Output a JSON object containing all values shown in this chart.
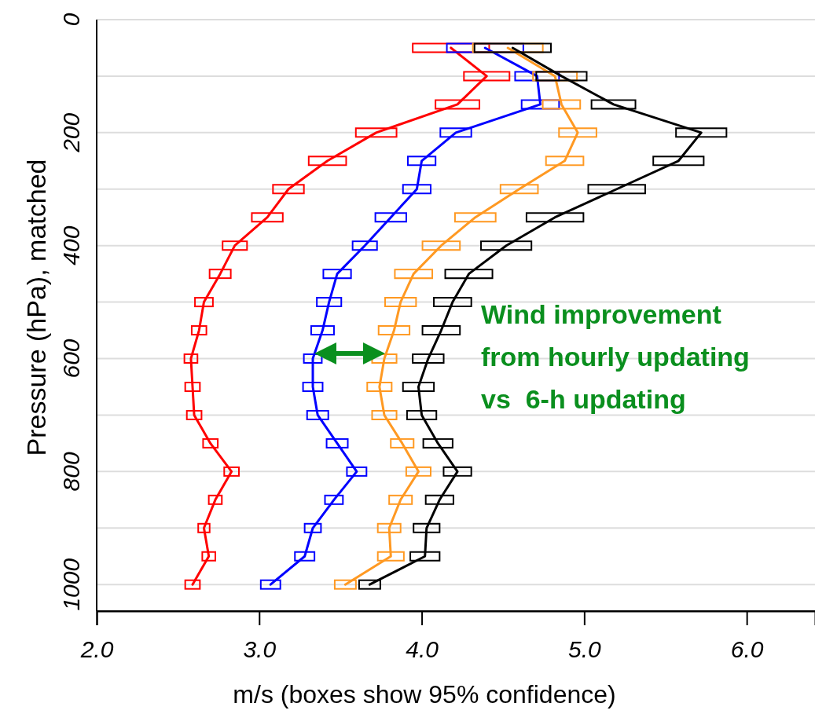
{
  "chart_data": {
    "type": "line",
    "xlabel": "m/s (boxes show 95% confidence)",
    "ylabel": "Pressure (hPa), matched",
    "xlim": [
      2.0,
      6.42
    ],
    "ylim": [
      1047,
      0
    ],
    "xticks": [
      {
        "value": 2,
        "label": "2.0"
      },
      {
        "value": 3,
        "label": "3.0"
      },
      {
        "value": 4,
        "label": "4.0"
      },
      {
        "value": 5,
        "label": "5.0"
      },
      {
        "value": 6,
        "label": "6.0"
      }
    ],
    "yticks": [
      0,
      {
        "value": 100,
        "label": null
      },
      200,
      {
        "value": 300,
        "label": null
      },
      400,
      {
        "value": 500,
        "label": null
      },
      600,
      {
        "value": 700,
        "label": null
      },
      800,
      {
        "value": 900,
        "label": null
      },
      1000
    ],
    "grid": "y",
    "line_style": "solid",
    "annotations": [
      "Wind improvement\nfrom hourly updating\nvs  6-h updating"
    ],
    "series": [
      {
        "color": "#ff0000",
        "x": [
          4.18,
          4.4,
          4.22,
          3.72,
          3.42,
          3.18,
          3.05,
          2.85,
          2.76,
          2.66,
          2.63,
          2.58,
          2.59,
          2.6,
          2.7,
          2.83,
          2.73,
          2.66,
          2.69,
          2.59
        ],
        "values": [
          50,
          100,
          150,
          200,
          250,
          300,
          350,
          400,
          450,
          500,
          550,
          600,
          650,
          700,
          750,
          800,
          850,
          900,
          950,
          1000
        ],
        "xerrors": [
          0.24,
          0.145,
          0.14,
          0.13,
          0.12,
          0.1,
          0.1,
          0.08,
          0.07,
          0.06,
          0.05,
          0.045,
          0.05,
          0.05,
          0.05,
          0.05,
          0.045,
          0.04,
          0.045,
          0.05
        ]
      },
      {
        "color": "#0000ff",
        "x": [
          4.39,
          4.71,
          4.73,
          4.21,
          4.0,
          3.97,
          3.81,
          3.65,
          3.48,
          3.43,
          3.39,
          3.33,
          3.33,
          3.36,
          3.48,
          3.6,
          3.46,
          3.33,
          3.28,
          3.07
        ],
        "values": [
          50,
          100,
          150,
          200,
          250,
          300,
          350,
          400,
          450,
          500,
          550,
          600,
          650,
          700,
          750,
          800,
          850,
          900,
          950,
          1000
        ],
        "xerrors": [
          0.24,
          0.14,
          0.12,
          0.1,
          0.09,
          0.09,
          0.1,
          0.08,
          0.09,
          0.08,
          0.075,
          0.06,
          0.065,
          0.07,
          0.07,
          0.065,
          0.06,
          0.055,
          0.065,
          0.065
        ]
      },
      {
        "color": "#ff9922",
        "x": [
          4.53,
          4.82,
          4.86,
          4.96,
          4.88,
          4.6,
          4.33,
          4.12,
          3.95,
          3.87,
          3.83,
          3.77,
          3.74,
          3.77,
          3.88,
          3.98,
          3.87,
          3.8,
          3.81,
          3.53
        ],
        "values": [
          50,
          100,
          150,
          200,
          250,
          300,
          350,
          400,
          450,
          500,
          550,
          600,
          650,
          700,
          750,
          800,
          850,
          900,
          950,
          1000
        ],
        "xerrors": [
          0.22,
          0.14,
          0.12,
          0.12,
          0.12,
          0.12,
          0.13,
          0.12,
          0.12,
          0.1,
          0.1,
          0.08,
          0.08,
          0.08,
          0.075,
          0.08,
          0.075,
          0.075,
          0.085,
          0.07
        ]
      },
      {
        "color": "#000000",
        "x": [
          4.56,
          4.86,
          5.18,
          5.72,
          5.58,
          5.2,
          4.82,
          4.52,
          4.29,
          4.19,
          4.12,
          4.04,
          3.98,
          4.0,
          4.1,
          4.22,
          4.11,
          4.03,
          4.02,
          3.68
        ],
        "values": [
          50,
          100,
          150,
          200,
          250,
          300,
          350,
          400,
          450,
          500,
          550,
          600,
          650,
          700,
          750,
          800,
          850,
          900,
          950,
          1000
        ],
        "xerrors": [
          0.24,
          0.16,
          0.14,
          0.16,
          0.16,
          0.18,
          0.18,
          0.16,
          0.15,
          0.12,
          0.12,
          0.1,
          0.1,
          0.095,
          0.095,
          0.09,
          0.09,
          0.085,
          0.095,
          0.07
        ]
      }
    ]
  }
}
